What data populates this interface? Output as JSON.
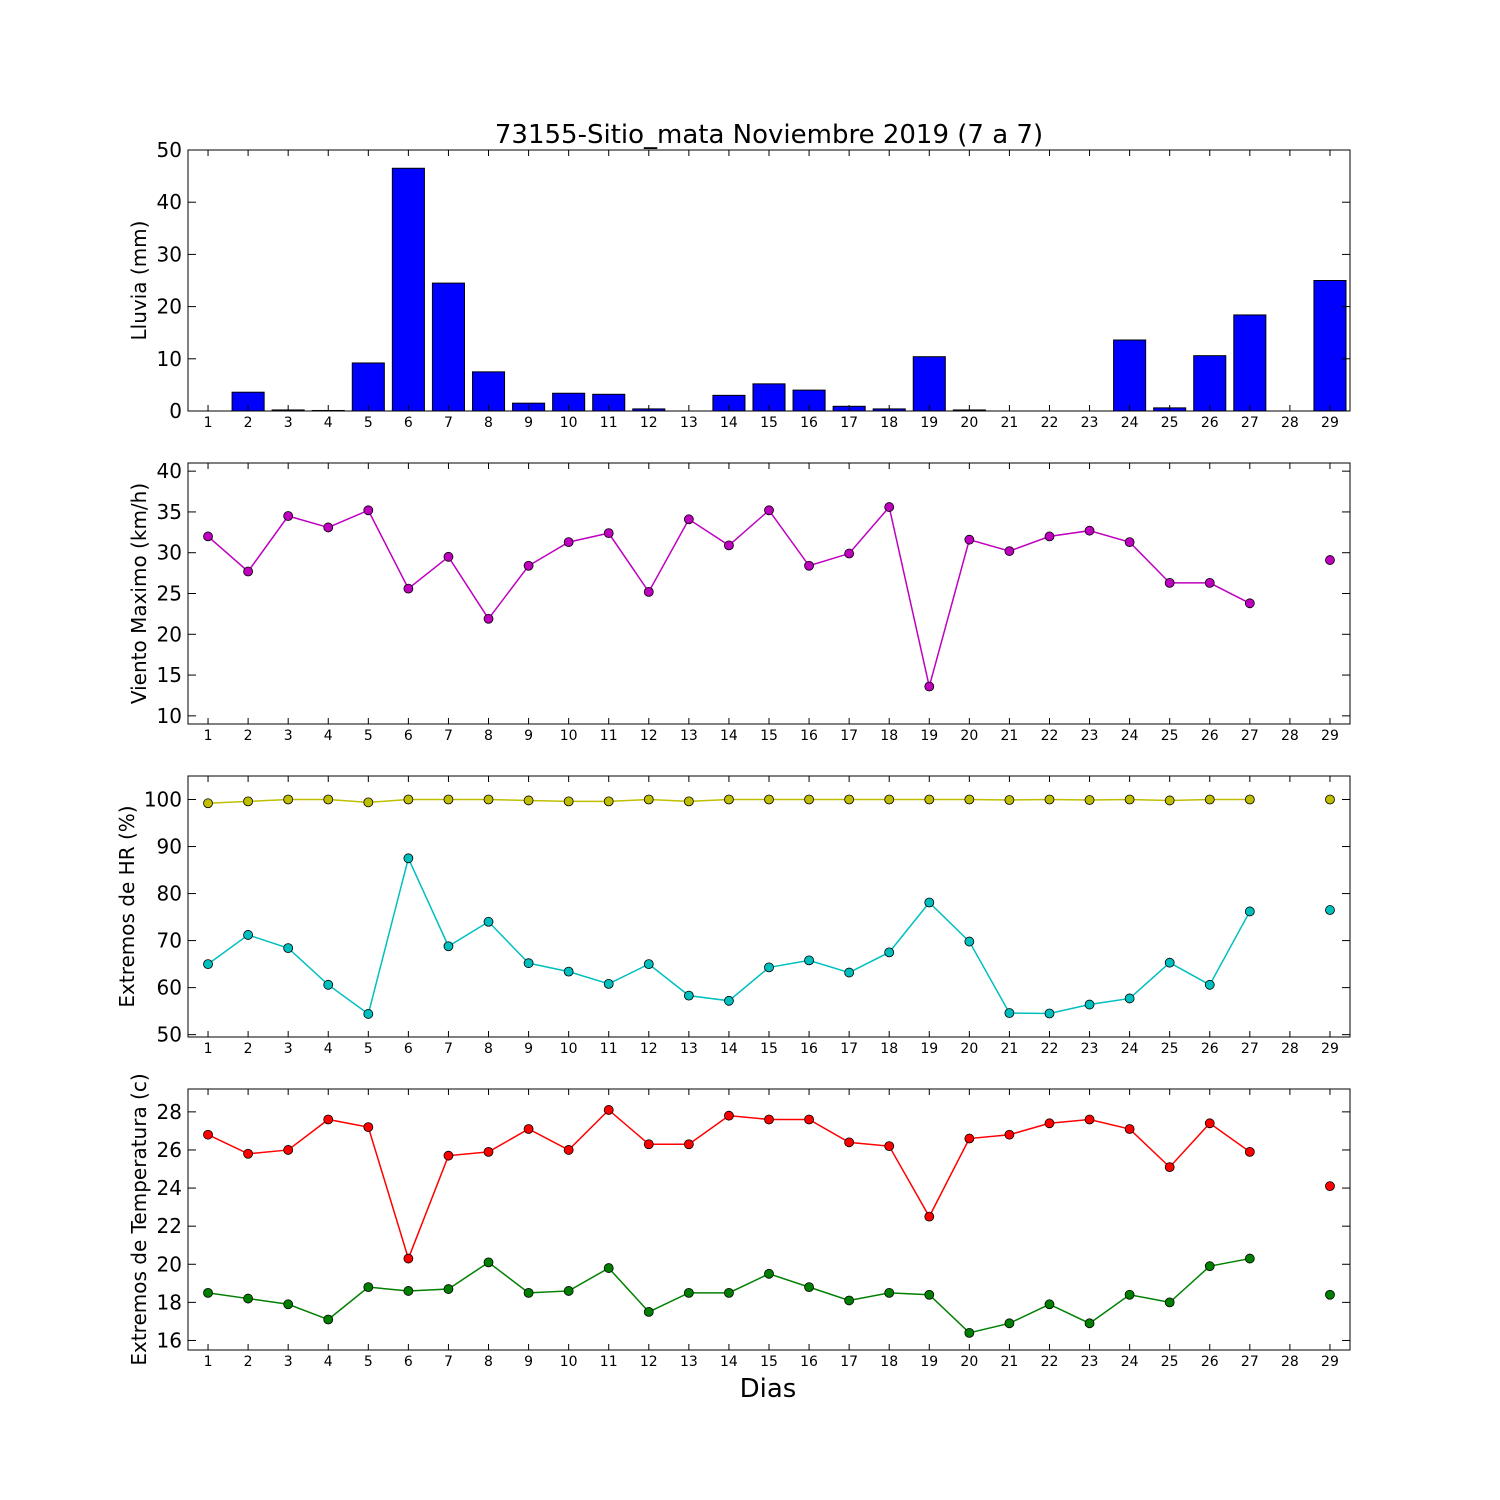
{
  "chart_data": [
    {
      "type": "bar",
      "title": "73155-Sitio_mata Noviembre 2019  (7 a 7)",
      "ylabel": "Lluvia (mm)",
      "xlabel": "",
      "x": [
        1,
        2,
        3,
        4,
        5,
        6,
        7,
        8,
        9,
        10,
        11,
        12,
        13,
        14,
        15,
        16,
        17,
        18,
        19,
        20,
        21,
        22,
        23,
        24,
        25,
        26,
        27,
        28,
        29
      ],
      "xlim": [
        0.5,
        29.5
      ],
      "ylim": [
        0,
        50
      ],
      "yticks": [
        0,
        10,
        20,
        30,
        40,
        50
      ],
      "series": [
        {
          "color": "#0000ff",
          "values": [
            0,
            3.6,
            0.2,
            0.1,
            9.2,
            46.5,
            24.5,
            7.5,
            1.5,
            3.4,
            3.2,
            0.4,
            0,
            3.0,
            5.2,
            4.0,
            0.9,
            0.4,
            10.4,
            0.2,
            0,
            0,
            0,
            13.6,
            0.6,
            10.6,
            18.4,
            null,
            25.0
          ]
        }
      ],
      "grid": false
    },
    {
      "type": "line",
      "title": "",
      "ylabel": "Viento Maximo (km/h)",
      "xlabel": "",
      "x": [
        1,
        2,
        3,
        4,
        5,
        6,
        7,
        8,
        9,
        10,
        11,
        12,
        13,
        14,
        15,
        16,
        17,
        18,
        19,
        20,
        21,
        22,
        23,
        24,
        25,
        26,
        27,
        28,
        29
      ],
      "xlim": [
        0.5,
        29.5
      ],
      "ylim": [
        9,
        41
      ],
      "yticks": [
        10,
        15,
        20,
        25,
        30,
        35,
        40
      ],
      "series": [
        {
          "color": "#bf00bf",
          "values": [
            32.0,
            27.7,
            34.5,
            33.1,
            35.2,
            25.6,
            29.5,
            21.9,
            28.4,
            31.3,
            32.4,
            25.2,
            34.1,
            30.9,
            35.2,
            28.4,
            29.9,
            35.6,
            13.6,
            31.6,
            30.2,
            32.0,
            32.7,
            31.3,
            26.3,
            26.3,
            23.8,
            null,
            29.1
          ]
        }
      ],
      "grid": false
    },
    {
      "type": "line",
      "title": "",
      "ylabel": "Extremos de HR (%)",
      "xlabel": "",
      "x": [
        1,
        2,
        3,
        4,
        5,
        6,
        7,
        8,
        9,
        10,
        11,
        12,
        13,
        14,
        15,
        16,
        17,
        18,
        19,
        20,
        21,
        22,
        23,
        24,
        25,
        26,
        27,
        28,
        29
      ],
      "xlim": [
        0.5,
        29.5
      ],
      "ylim": [
        49.5,
        105
      ],
      "yticks": [
        50,
        60,
        70,
        80,
        90,
        100
      ],
      "series": [
        {
          "color": "#bfbf00",
          "values": [
            99.2,
            99.6,
            100,
            100,
            99.4,
            100,
            100,
            100,
            99.8,
            99.6,
            99.6,
            100,
            99.6,
            100,
            100,
            100,
            100,
            100,
            100,
            100,
            99.9,
            100,
            99.9,
            100,
            99.8,
            100,
            100,
            null,
            100
          ]
        },
        {
          "color": "#00bfbf",
          "values": [
            65.0,
            71.2,
            68.4,
            60.6,
            54.4,
            87.5,
            68.8,
            74.0,
            65.2,
            63.4,
            60.8,
            65.0,
            58.3,
            57.2,
            64.3,
            65.8,
            63.2,
            67.5,
            78.1,
            69.8,
            54.6,
            54.5,
            56.4,
            57.7,
            65.3,
            60.6,
            76.2,
            null,
            76.5
          ]
        }
      ],
      "grid": false
    },
    {
      "type": "line",
      "title": "",
      "ylabel": "Extremos de Temperatura (c)",
      "xlabel": "Dias",
      "x": [
        1,
        2,
        3,
        4,
        5,
        6,
        7,
        8,
        9,
        10,
        11,
        12,
        13,
        14,
        15,
        16,
        17,
        18,
        19,
        20,
        21,
        22,
        23,
        24,
        25,
        26,
        27,
        28,
        29
      ],
      "xlim": [
        0.5,
        29.5
      ],
      "ylim": [
        15.5,
        29.2
      ],
      "yticks": [
        16,
        18,
        20,
        22,
        24,
        26,
        28
      ],
      "series": [
        {
          "color": "#ff0000",
          "values": [
            26.8,
            25.8,
            26.0,
            27.6,
            27.2,
            20.3,
            25.7,
            25.9,
            27.1,
            26.0,
            28.1,
            26.3,
            26.3,
            27.8,
            27.6,
            27.6,
            26.4,
            26.2,
            22.5,
            26.6,
            26.8,
            27.4,
            27.6,
            27.1,
            25.1,
            27.4,
            25.9,
            null,
            24.1
          ]
        },
        {
          "color": "#008000",
          "values": [
            18.5,
            18.2,
            17.9,
            17.1,
            18.8,
            18.6,
            18.7,
            20.1,
            18.5,
            18.6,
            19.8,
            17.5,
            18.5,
            18.5,
            19.5,
            18.8,
            18.1,
            18.5,
            18.4,
            16.4,
            16.9,
            17.9,
            16.9,
            18.4,
            18.0,
            19.9,
            20.3,
            null,
            18.4
          ]
        }
      ],
      "grid": false
    }
  ]
}
